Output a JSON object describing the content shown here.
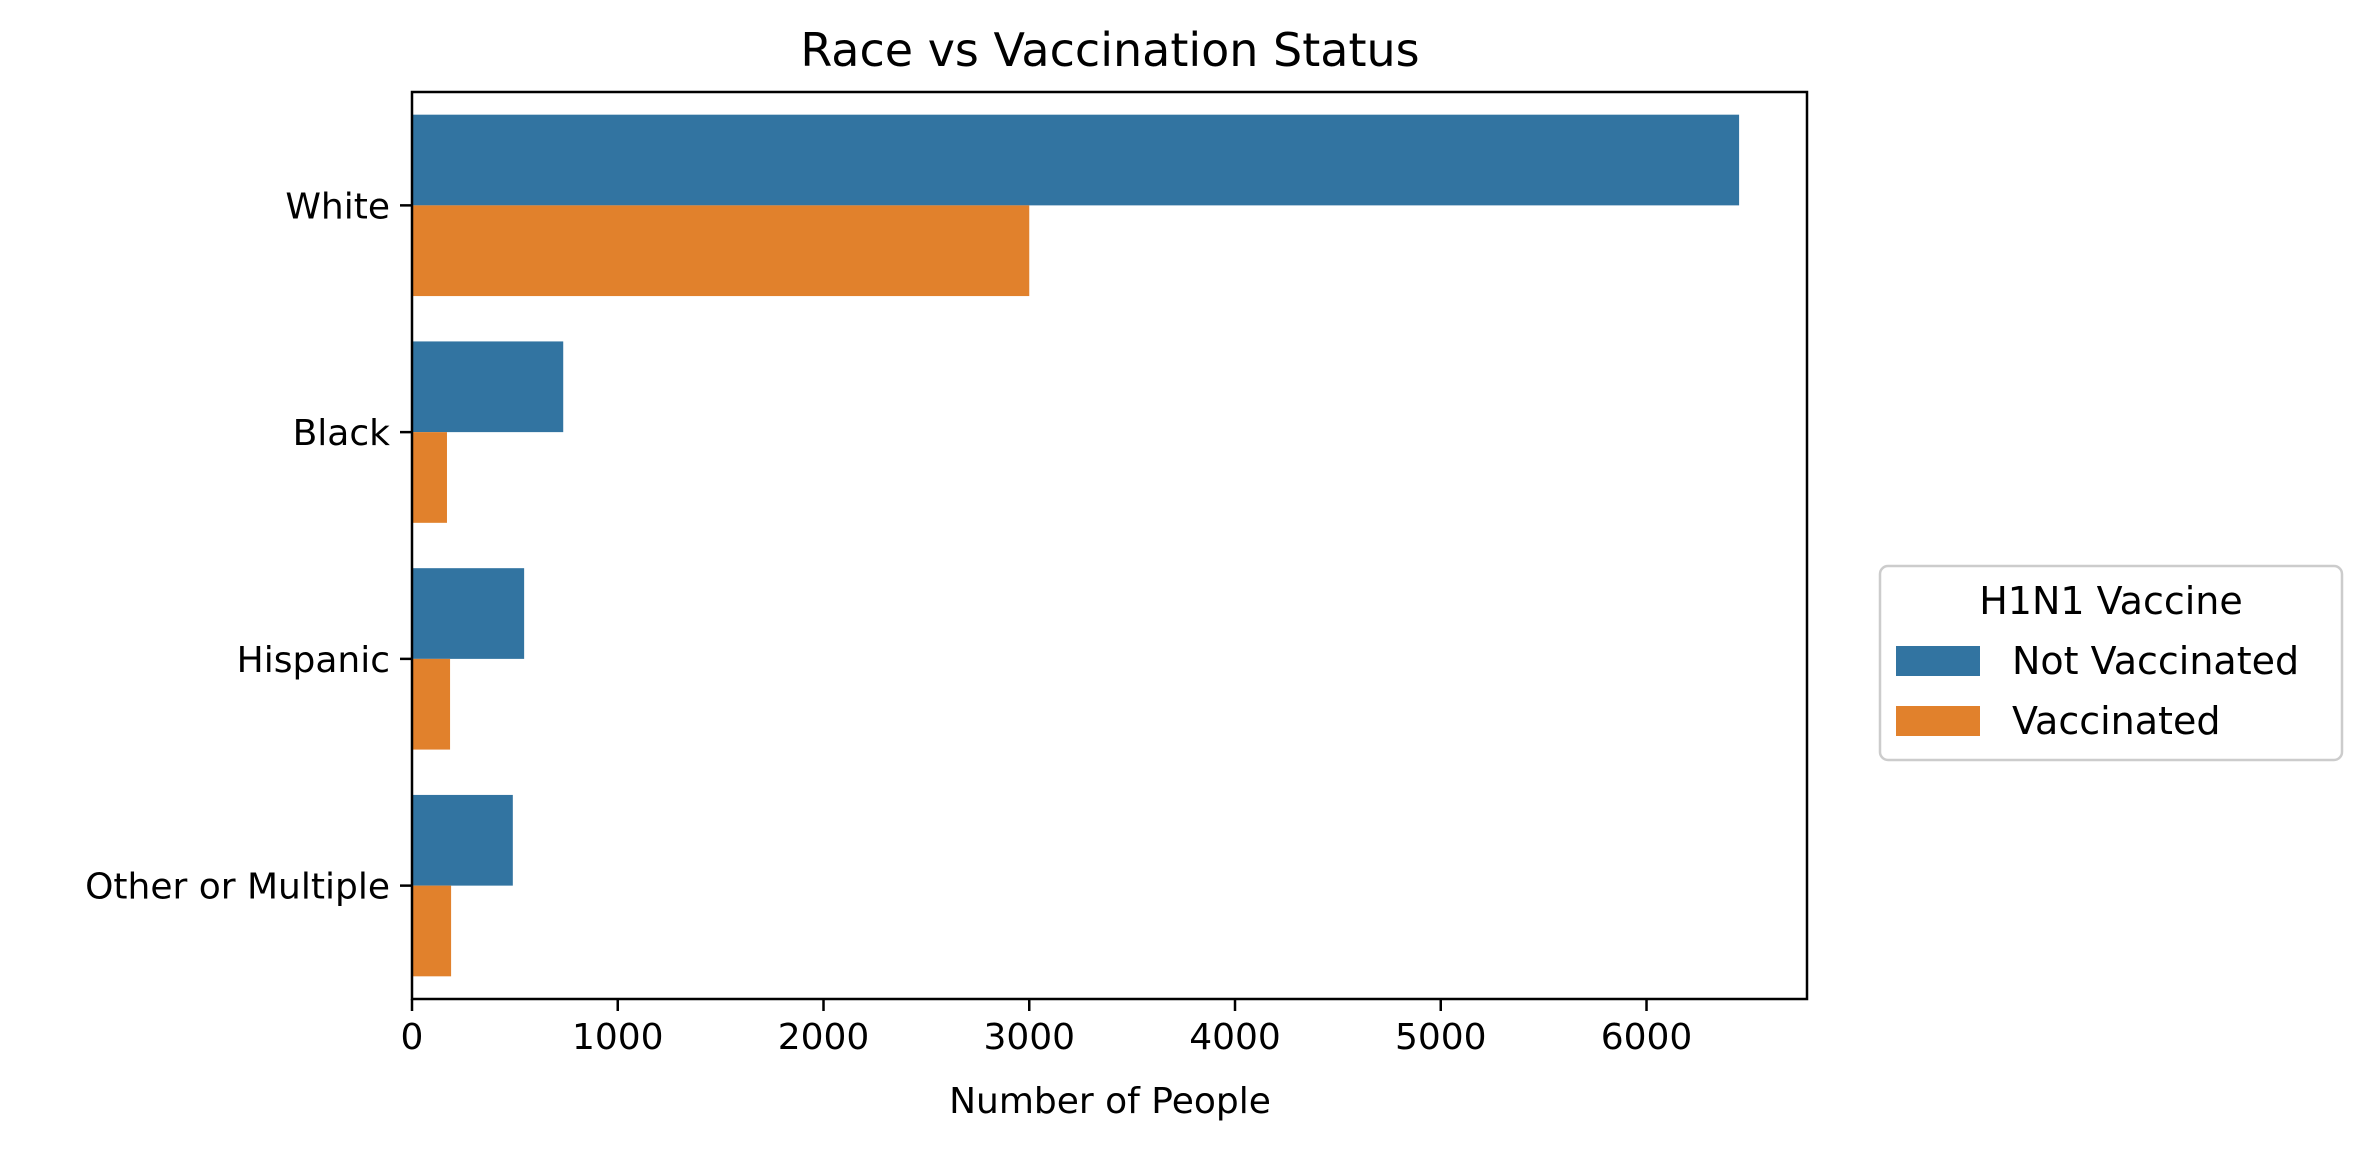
{
  "chart_data": {
    "type": "bar",
    "orientation": "horizontal",
    "title": "Race vs Vaccination Status",
    "xlabel": "Number of People",
    "ylabel": "",
    "categories": [
      "White",
      "Black",
      "Hispanic",
      "Other or Multiple"
    ],
    "series": [
      {
        "name": "Not Vaccinated",
        "color": "#3274a1",
        "values": [
          6450,
          735,
          545,
          490
        ]
      },
      {
        "name": "Vaccinated",
        "color": "#e1812c",
        "values": [
          3000,
          170,
          185,
          190
        ]
      }
    ],
    "xlim": [
      0,
      6780
    ],
    "xticks": [
      0,
      1000,
      2000,
      3000,
      4000,
      5000,
      6000
    ],
    "grid": false,
    "legend": {
      "title": "H1N1 Vaccine",
      "placement": "center-right outside"
    }
  }
}
